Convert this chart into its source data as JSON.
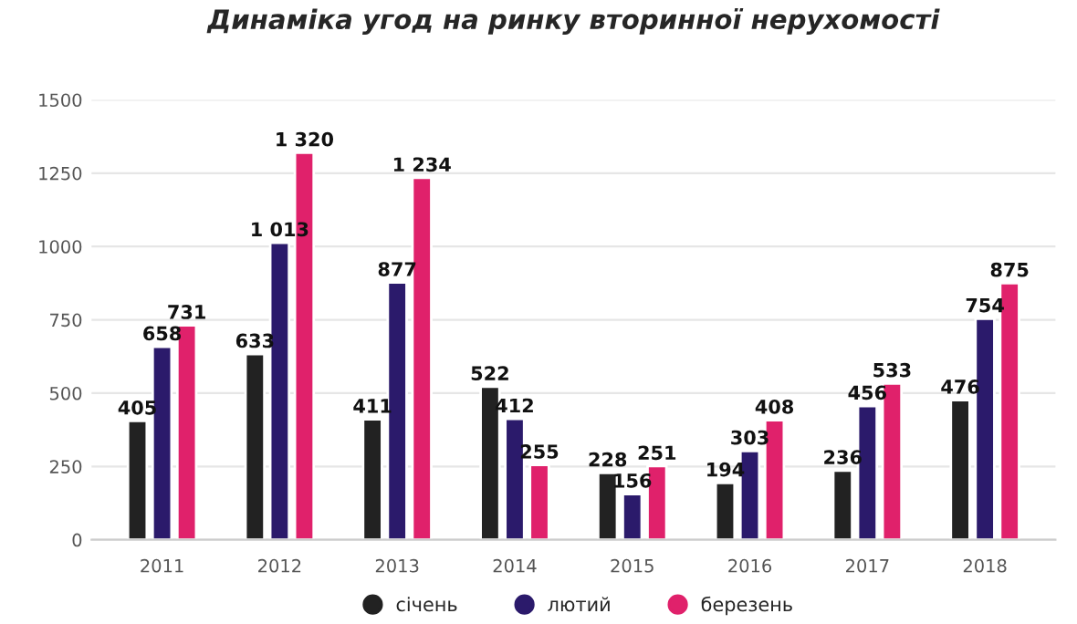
{
  "chart_data": {
    "type": "bar",
    "title": "Динаміка угод на ринку вторинної нерухомості",
    "categories": [
      "2011",
      "2012",
      "2013",
      "2014",
      "2015",
      "2016",
      "2017",
      "2018"
    ],
    "series": [
      {
        "name": "січень",
        "color": "#222222",
        "values": [
          405,
          633,
          411,
          522,
          228,
          194,
          236,
          476
        ],
        "value_labels": [
          "405",
          "633",
          "411",
          "522",
          "228",
          "194",
          "236",
          "476"
        ]
      },
      {
        "name": "лютий",
        "color": "#2b1a6b",
        "values": [
          658,
          1013,
          877,
          412,
          156,
          303,
          456,
          754
        ],
        "value_labels": [
          "658",
          "1 013",
          "877",
          "412",
          "156",
          "303",
          "456",
          "754"
        ]
      },
      {
        "name": "березень",
        "color": "#e0216b",
        "values": [
          731,
          1320,
          1234,
          255,
          251,
          408,
          533,
          875
        ],
        "value_labels": [
          "731",
          "1 320",
          "1 234",
          "255",
          "251",
          "408",
          "533",
          "875"
        ]
      }
    ],
    "ylim": [
      0,
      1500
    ],
    "yticks": [
      0,
      250,
      500,
      750,
      1000,
      1250,
      1500
    ],
    "grid": "y",
    "legend": "bottom"
  }
}
